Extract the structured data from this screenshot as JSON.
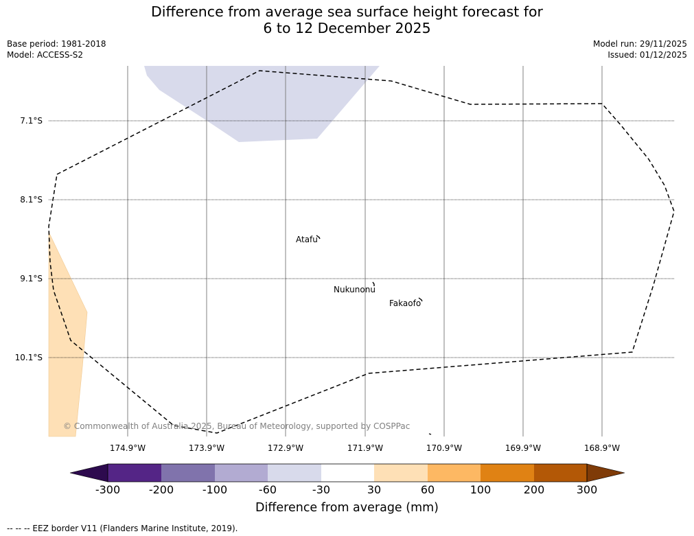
{
  "title": {
    "line1": "Difference from average sea surface height forecast for",
    "line2": "6 to 12 December 2025"
  },
  "meta": {
    "base_period": "Base period: 1981-2018",
    "model": "Model: ACCESS-S2",
    "model_run": "Model run: 29/11/2025",
    "issued": "Issued: 01/12/2025"
  },
  "axes": {
    "latitudes": [
      "7.1°S",
      "8.1°S",
      "9.1°S",
      "10.1°S"
    ],
    "longitudes": [
      "174.9°W",
      "173.9°W",
      "172.9°W",
      "171.9°W",
      "170.9°W",
      "169.9°W",
      "168.9°W"
    ]
  },
  "places": [
    "Atafu",
    "Nukunonu",
    "Fakaofo"
  ],
  "copyright": "© Commonwealth of Australia 2025, Bureau of Meteorology, supported by COSPPac",
  "colorbar": {
    "ticks": [
      "-300",
      "-200",
      "-100",
      "-60",
      "-30",
      "30",
      "60",
      "100",
      "200",
      "300"
    ],
    "colors": [
      "#2d0a4e",
      "#542586",
      "#8073ac",
      "#b2abd2",
      "#d8daeb",
      "#ffffff",
      "#fee0b6",
      "#fdb863",
      "#e08214",
      "#b35806",
      "#7f3b08"
    ],
    "label": "Difference from average (mm)"
  },
  "legend": {
    "footer": "--  --  -- EEZ border V11 (Flanders Marine Institute, 2019)."
  }
}
